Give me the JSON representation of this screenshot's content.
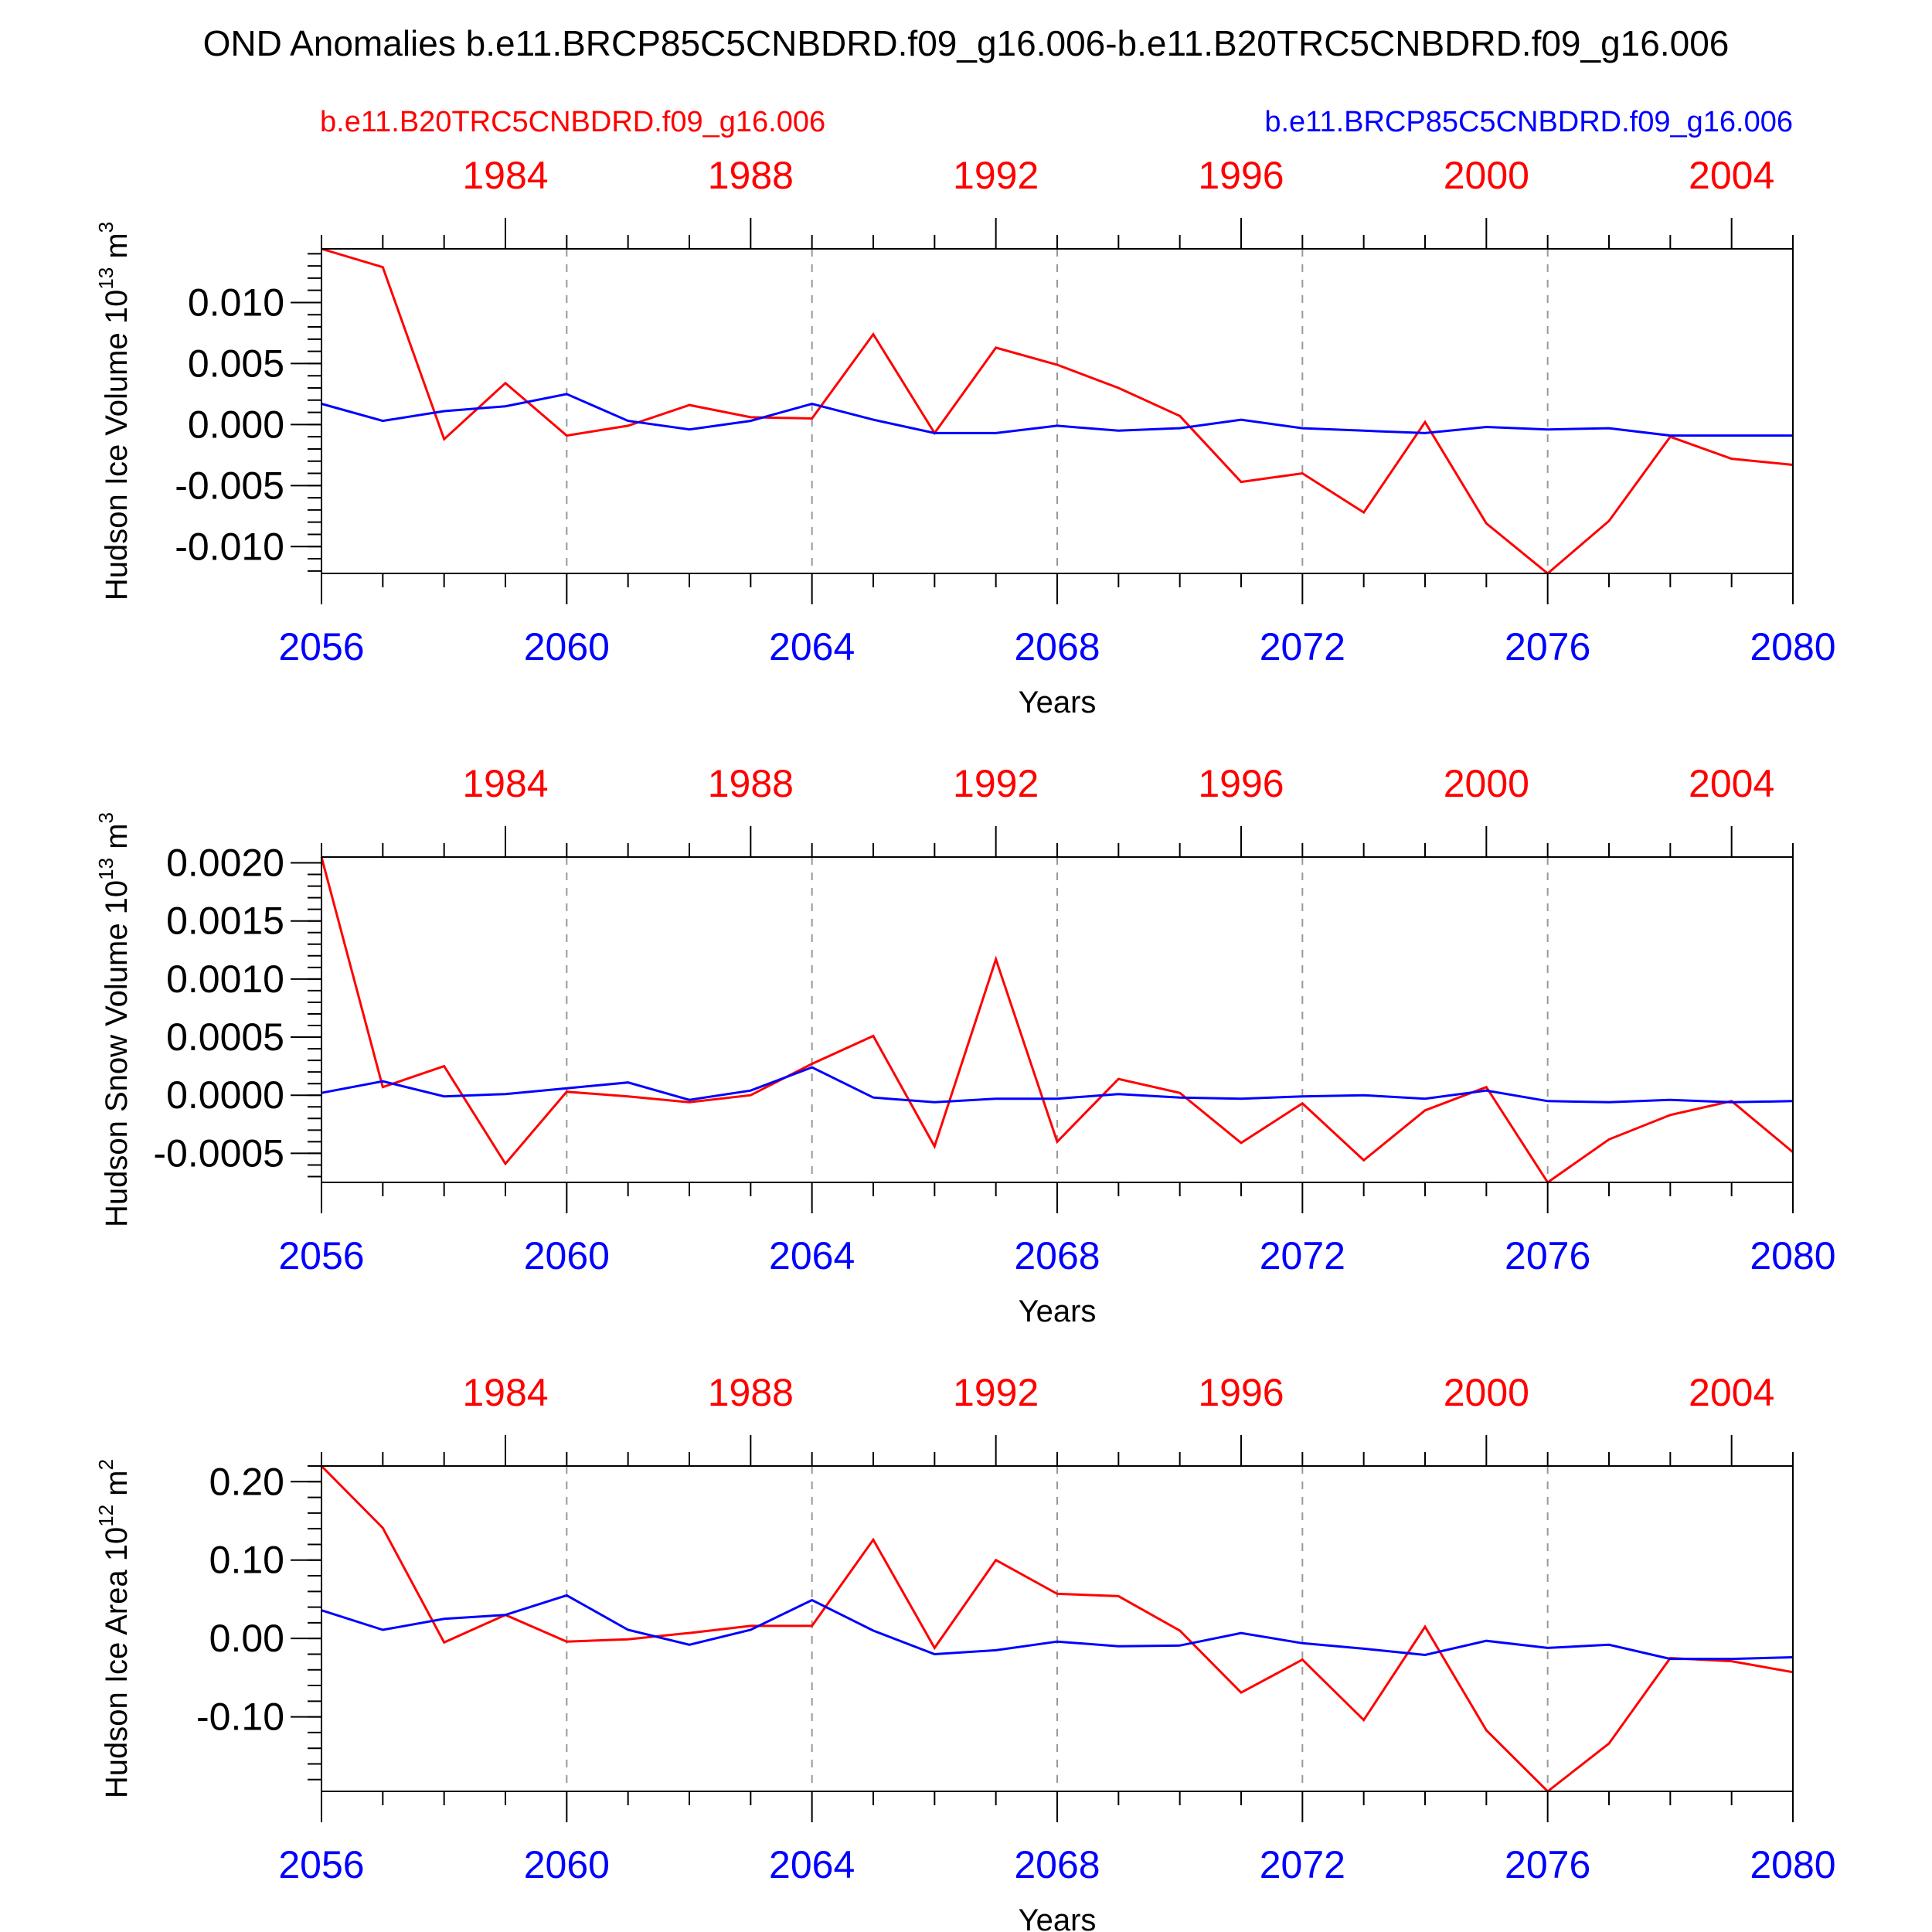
{
  "title": "OND Anomalies b.e11.BRCP85C5CNBDRD.f09_g16.006-b.e11.B20TRC5CNBDRD.f09_g16.006",
  "legend": {
    "red_label": "b.e11.B20TRC5CNBDRD.f09_g16.006",
    "blue_label": "b.e11.BRCP85C5CNBDRD.f09_g16.006",
    "placement": "top"
  },
  "colors": {
    "red": "#ff0000",
    "blue": "#0000ff",
    "grid": "#999999",
    "axis": "#000000"
  },
  "chart_data": [
    {
      "type": "line",
      "ylabel": "Hudson Ice Volume 10",
      "ylabel_exp": "13",
      "ylabel_unit": " m",
      "ylabel_unit_exp": "3",
      "xlabel": "Years",
      "x": [
        2056,
        2057,
        2058,
        2059,
        2060,
        2061,
        2062,
        2063,
        2064,
        2065,
        2066,
        2067,
        2068,
        2069,
        2070,
        2071,
        2072,
        2073,
        2074,
        2075,
        2076,
        2077,
        2078,
        2079,
        2080
      ],
      "xlim": [
        2056,
        2080
      ],
      "ylim": [
        -0.0122,
        0.0144
      ],
      "yticks": [
        0.01,
        0.005,
        0.0,
        -0.005,
        -0.01
      ],
      "yticklabels": [
        "0.010",
        "0.005",
        "0.000",
        "-0.005",
        "-0.010"
      ],
      "yminor_step": 0.001,
      "bottom_ticks": [
        2056,
        2060,
        2064,
        2068,
        2072,
        2076,
        2080
      ],
      "top_ticks": [
        1984,
        1988,
        1992,
        1996,
        2000,
        2004
      ],
      "grid": "dashed vertical",
      "series": [
        {
          "color": "red",
          "values": [
            0.0144,
            0.0129,
            -0.0012,
            0.0034,
            -0.0009,
            -0.0001,
            0.0016,
            0.0006,
            0.0005,
            0.0074,
            -0.0007,
            0.0063,
            0.0049,
            0.003,
            0.0007,
            -0.0047,
            -0.004,
            -0.0072,
            0.0002,
            -0.0081,
            -0.0122,
            -0.0079,
            -0.001,
            -0.0028,
            -0.0033
          ]
        },
        {
          "color": "blue",
          "values": [
            0.0017,
            0.0003,
            0.0011,
            0.0015,
            0.0025,
            0.0003,
            -0.0004,
            0.0003,
            0.0017,
            0.0004,
            -0.0007,
            -0.0007,
            -0.0001,
            -0.0005,
            -0.0003,
            0.0004,
            -0.0003,
            -0.0005,
            -0.0007,
            -0.0002,
            -0.0004,
            -0.0003,
            -0.0009,
            -0.0009,
            -0.0009
          ]
        }
      ]
    },
    {
      "type": "line",
      "ylabel": "Hudson Snow Volume 10",
      "ylabel_exp": "13",
      "ylabel_unit": " m",
      "ylabel_unit_exp": "3",
      "xlabel": "Years",
      "x": [
        2056,
        2057,
        2058,
        2059,
        2060,
        2061,
        2062,
        2063,
        2064,
        2065,
        2066,
        2067,
        2068,
        2069,
        2070,
        2071,
        2072,
        2073,
        2074,
        2075,
        2076,
        2077,
        2078,
        2079,
        2080
      ],
      "xlim": [
        2056,
        2080
      ],
      "ylim": [
        -0.00075,
        0.00205
      ],
      "yticks": [
        0.002,
        0.0015,
        0.001,
        0.0005,
        0.0,
        -0.0005
      ],
      "yticklabels": [
        "0.0020",
        "0.0015",
        "0.0010",
        "0.0005",
        "0.0000",
        "-0.0005"
      ],
      "yminor_step": 0.0001,
      "bottom_ticks": [
        2056,
        2060,
        2064,
        2068,
        2072,
        2076,
        2080
      ],
      "top_ticks": [
        1984,
        1988,
        1992,
        1996,
        2000,
        2004
      ],
      "grid": "dashed vertical",
      "series": [
        {
          "color": "red",
          "values": [
            0.00205,
            7e-05,
            0.00025,
            -0.00059,
            3e-05,
            -1e-05,
            -6e-05,
            0.0,
            0.00027,
            0.00051,
            -0.00044,
            0.00117,
            -0.0004,
            0.00014,
            2e-05,
            -0.00041,
            -7e-05,
            -0.00056,
            -0.00013,
            7e-05,
            -0.00075,
            -0.00038,
            -0.00017,
            -5e-05,
            -0.00049
          ]
        },
        {
          "color": "blue",
          "values": [
            2e-05,
            0.00012,
            -1e-05,
            1e-05,
            6e-05,
            0.00011,
            -4e-05,
            4e-05,
            0.00024,
            -2e-05,
            -6e-05,
            -3e-05,
            -3e-05,
            1e-05,
            -2e-05,
            -3e-05,
            -1e-05,
            0.0,
            -3e-05,
            4e-05,
            -5e-05,
            -6e-05,
            -4e-05,
            -6e-05,
            -5e-05
          ]
        }
      ]
    },
    {
      "type": "line",
      "ylabel": "Hudson Ice Area 10",
      "ylabel_exp": "12",
      "ylabel_unit": " m",
      "ylabel_unit_exp": "2",
      "xlabel": "Years",
      "x": [
        2056,
        2057,
        2058,
        2059,
        2060,
        2061,
        2062,
        2063,
        2064,
        2065,
        2066,
        2067,
        2068,
        2069,
        2070,
        2071,
        2072,
        2073,
        2074,
        2075,
        2076,
        2077,
        2078,
        2079,
        2080
      ],
      "xlim": [
        2056,
        2080
      ],
      "ylim": [
        -0.195,
        0.22
      ],
      "yticks": [
        0.2,
        0.1,
        0.0,
        -0.1
      ],
      "yticklabels": [
        "0.20",
        "0.10",
        "0.00",
        "-0.10"
      ],
      "yminor_step": 0.02,
      "bottom_ticks": [
        2056,
        2060,
        2064,
        2068,
        2072,
        2076,
        2080
      ],
      "top_ticks": [
        1984,
        1988,
        1992,
        1996,
        2000,
        2004
      ],
      "grid": "dashed vertical",
      "series": [
        {
          "color": "red",
          "values": [
            0.22,
            0.141,
            -0.005,
            0.03,
            -0.004,
            -0.001,
            0.007,
            0.016,
            0.016,
            0.126,
            -0.012,
            0.1,
            0.057,
            0.054,
            0.01,
            -0.069,
            -0.027,
            -0.104,
            0.015,
            -0.117,
            -0.195,
            -0.134,
            -0.025,
            -0.029,
            -0.043
          ]
        },
        {
          "color": "blue",
          "values": [
            0.036,
            0.011,
            0.025,
            0.03,
            0.055,
            0.011,
            -0.008,
            0.011,
            0.049,
            0.01,
            -0.02,
            -0.015,
            -0.004,
            -0.01,
            -0.009,
            0.007,
            -0.006,
            -0.013,
            -0.021,
            -0.003,
            -0.012,
            -0.008,
            -0.026,
            -0.026,
            -0.024
          ]
        }
      ]
    }
  ]
}
